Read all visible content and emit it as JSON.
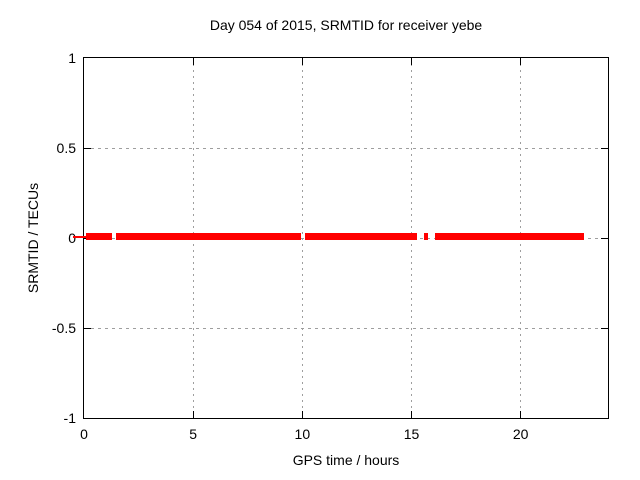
{
  "chart_data": {
    "type": "line",
    "title": "Day 054 of 2015, SRMTID for receiver yebe",
    "xlabel": "GPS time / hours",
    "ylabel": "SRMTID / TECUs",
    "xlim": [
      0,
      24
    ],
    "ylim": [
      -1,
      1
    ],
    "xticks": [
      0,
      5,
      10,
      15,
      20
    ],
    "xtick_labels": [
      "0",
      "5",
      "10",
      "15",
      "20"
    ],
    "yticks": [
      -1,
      -0.5,
      0,
      0.5,
      1
    ],
    "ytick_labels": [
      "-1",
      "-0.5",
      "0",
      "0.5",
      "1"
    ],
    "grid": true,
    "legend": "none",
    "series": [
      {
        "name": "SRMTID",
        "color": "#ff0000",
        "y_value": 0,
        "style": "thick horizontal band of dense points at y=0",
        "segments_x_hours": [
          [
            0.09,
            1.28
          ],
          [
            1.47,
            9.94
          ],
          [
            10.12,
            15.25
          ],
          [
            15.57,
            15.76
          ],
          [
            16.08,
            22.9
          ]
        ]
      }
    ],
    "annotations": [
      {
        "type": "thin-red-dash",
        "note": "thin red dash at y=0 crossing the left axis border",
        "x_hours": [
          -0.5,
          0.09
        ],
        "y": 0
      }
    ]
  },
  "colors": {
    "background": "#ffffff",
    "text": "#000000",
    "axis": "#000000",
    "grid": "#9e9e9e",
    "series": "#ff0000"
  }
}
